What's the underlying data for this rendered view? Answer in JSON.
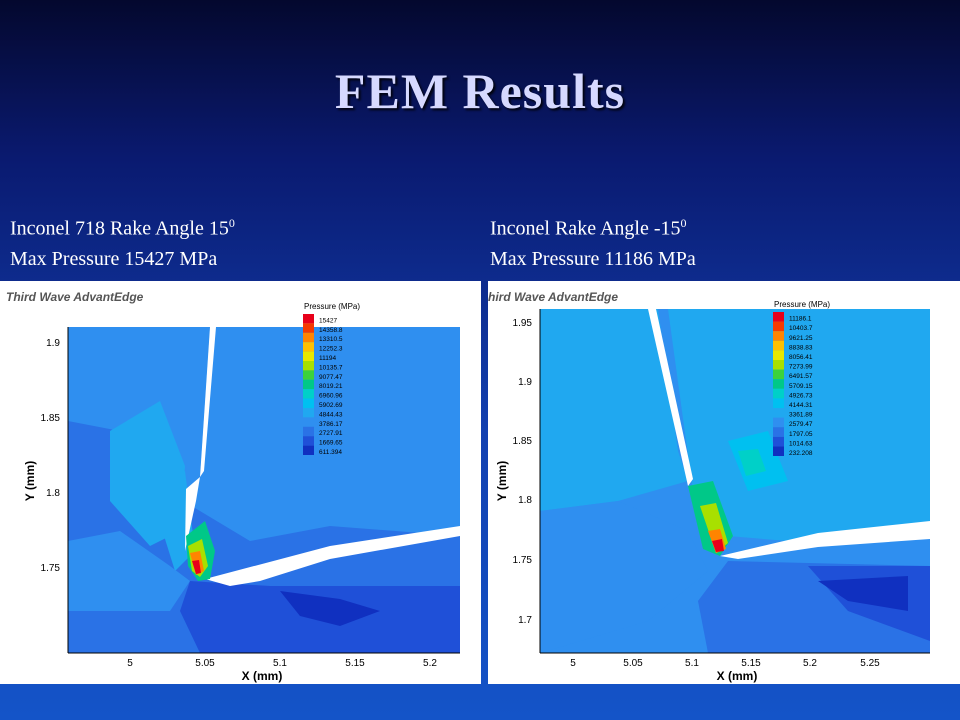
{
  "slide": {
    "title": "FEM Results"
  },
  "left": {
    "caption_line1_prefix": "Inconel 718 Rake Angle  15",
    "caption_line1_sup": "0",
    "caption_line2": "Max Pressure 15427 MPa",
    "software_label": "Third Wave AdvantEdge",
    "legend_title": "Pressure (MPa)",
    "legend_values": [
      "15427",
      "14358.8",
      "13310.5",
      "12252.3",
      "11194",
      "10135.7",
      "9077.47",
      "8019.21",
      "6960.96",
      "5902.69",
      "4844.43",
      "3786.17",
      "2727.91",
      "1669.65",
      "611.394"
    ],
    "x_label": "X (mm)",
    "y_label": "Y (mm)",
    "x_ticks": [
      "5",
      "5.05",
      "5.1",
      "5.15",
      "5.2"
    ],
    "y_ticks": [
      "1.9",
      "1.85",
      "1.8",
      "1.75"
    ]
  },
  "right": {
    "caption_line1_prefix": "Inconel Rake Angle  -15",
    "caption_line1_sup": "0",
    "caption_line2": "Max Pressure 11186 MPa",
    "software_label": "hird Wave AdvantEdge",
    "legend_title": "Pressure (MPa)",
    "legend_values": [
      "11186.1",
      "10403.7",
      "9621.25",
      "8838.83",
      "8056.41",
      "7273.99",
      "6491.57",
      "5709.15",
      "4926.73",
      "4144.31",
      "3361.89",
      "2579.47",
      "1797.05",
      "1014.63",
      "232.208"
    ],
    "x_label": "X (mm)",
    "y_label": "Y (mm)",
    "x_ticks": [
      "5",
      "5.05",
      "5.1",
      "5.15",
      "5.2",
      "5.25"
    ],
    "y_ticks": [
      "1.95",
      "1.9",
      "1.85",
      "1.8",
      "1.75",
      "1.7"
    ]
  },
  "legend_colors": [
    "#e8001a",
    "#f53a00",
    "#ff8400",
    "#ffc000",
    "#e8e800",
    "#a8e000",
    "#3cd23c",
    "#00c888",
    "#00d0c8",
    "#00c0f0",
    "#20a8f0",
    "#2f8ff0",
    "#2a72e6",
    "#1f50d8",
    "#1030c0"
  ]
}
